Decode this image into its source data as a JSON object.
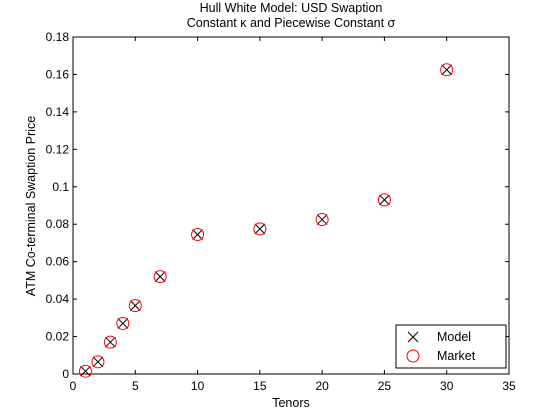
{
  "chart_data": {
    "type": "scatter",
    "title": "Hull White Model: USD Swaption",
    "subtitle": "Constant κ and Piecewise Constant σ",
    "xlabel": "Tenors",
    "ylabel": "ATM Co-terminal Swaption Price",
    "xlim": [
      0,
      35
    ],
    "ylim": [
      0,
      0.18
    ],
    "xticks": [
      0,
      5,
      10,
      15,
      20,
      25,
      30,
      35
    ],
    "xtick_labels": [
      "0",
      "5",
      "10",
      "15",
      "20",
      "25",
      "30",
      "35"
    ],
    "yticks": [
      0,
      0.02,
      0.04,
      0.06,
      0.08,
      0.1,
      0.12,
      0.14,
      0.16,
      0.18
    ],
    "ytick_labels": [
      "0",
      "0.02",
      "0.04",
      "0.06",
      "0.08",
      "0.1",
      "0.12",
      "0.14",
      "0.16",
      "0.18"
    ],
    "grid": false,
    "legend_position": "bottom-right",
    "series": [
      {
        "name": "Model",
        "marker": "x",
        "color": "#000000",
        "x": [
          1,
          2,
          3,
          4,
          5,
          7,
          10,
          15,
          20,
          25,
          30
        ],
        "y": [
          0.0015,
          0.0065,
          0.017,
          0.027,
          0.0365,
          0.052,
          0.0745,
          0.0775,
          0.0825,
          0.093,
          0.1625
        ]
      },
      {
        "name": "Market",
        "marker": "o",
        "color": "#ff0000",
        "x": [
          1,
          2,
          3,
          4,
          5,
          7,
          10,
          15,
          20,
          25,
          30
        ],
        "y": [
          0.0015,
          0.0065,
          0.017,
          0.027,
          0.0365,
          0.052,
          0.0745,
          0.0775,
          0.0825,
          0.093,
          0.1625
        ]
      }
    ]
  }
}
